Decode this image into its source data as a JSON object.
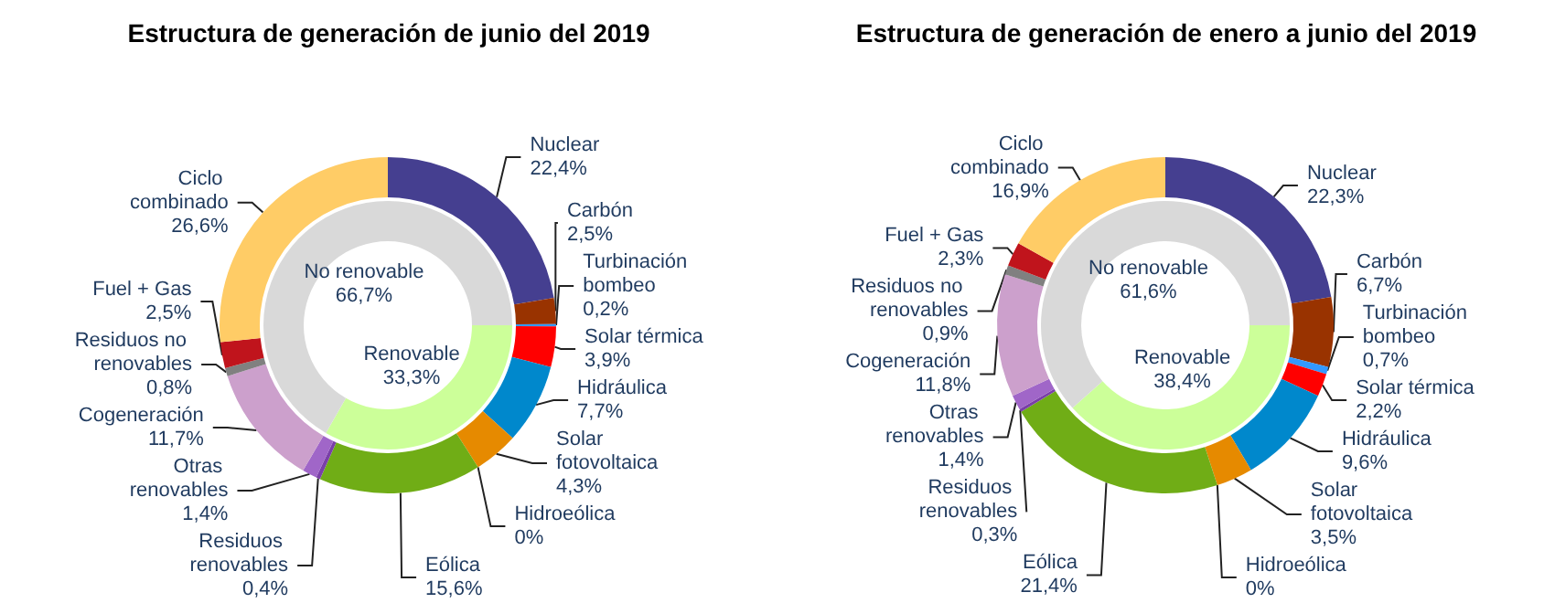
{
  "chart_data": [
    {
      "type": "donut",
      "title": "Estructura de generación de junio del 2019",
      "categories": [
        "Nuclear",
        "Carbón",
        "Turbinación bombeo",
        "Solar térmica",
        "Hidráulica",
        "Solar fotovoltaica",
        "Hidroeólica",
        "Eólica",
        "Residuos renovables",
        "Otras renovables",
        "Cogeneración",
        "Residuos no renovables",
        "Fuel + Gas",
        "Ciclo combinado"
      ],
      "values": [
        22.4,
        2.5,
        0.2,
        3.9,
        7.7,
        4.3,
        0,
        15.6,
        0.4,
        1.4,
        11.7,
        0.8,
        2.5,
        26.6
      ],
      "value_labels": [
        "22,4%",
        "2,5%",
        "0,2%",
        "3,9%",
        "7,7%",
        "4,3%",
        "0%",
        "15,6%",
        "0,4%",
        "1,4%",
        "11,7%",
        "0,8%",
        "2,5%",
        "26,6%"
      ],
      "colors": [
        "#453f90",
        "#993300",
        "#3399ff",
        "#ff0000",
        "#0088cc",
        "#e68a00",
        "#66ccff",
        "#70ad16",
        "#7a3fa8",
        "#a066c8",
        "#cca0cc",
        "#808080",
        "#c0141c",
        "#ffcc66"
      ]
    },
    {
      "type": "donut",
      "categories": [
        "Renovable",
        "No renovable"
      ],
      "values": [
        33.3,
        66.7
      ],
      "value_labels": [
        "33,3%",
        "66,7%"
      ],
      "colors": [
        "#ccff99",
        "#d9d9d9"
      ]
    },
    {
      "type": "donut",
      "title": "Estructura de generación de enero a junio del 2019",
      "categories": [
        "Nuclear",
        "Carbón",
        "Turbinación bombeo",
        "Solar térmica",
        "Hidráulica",
        "Solar fotovoltaica",
        "Hidroeólica",
        "Eólica",
        "Residuos renovables",
        "Otras renovables",
        "Cogeneración",
        "Residuos no renovables",
        "Fuel + Gas",
        "Ciclo combinado"
      ],
      "values": [
        22.3,
        6.7,
        0.7,
        2.2,
        9.6,
        3.5,
        0,
        21.4,
        0.3,
        1.4,
        11.8,
        0.9,
        2.3,
        16.9
      ],
      "value_labels": [
        "22,3%",
        "6,7%",
        "0,7%",
        "2,2%",
        "9,6%",
        "3,5%",
        "0%",
        "21,4%",
        "0,3%",
        "1,4%",
        "11,8%",
        "0,9%",
        "2,3%",
        "16,9%"
      ],
      "colors": [
        "#453f90",
        "#993300",
        "#3399ff",
        "#ff0000",
        "#0088cc",
        "#e68a00",
        "#66ccff",
        "#70ad16",
        "#7a3fa8",
        "#a066c8",
        "#cca0cc",
        "#808080",
        "#c0141c",
        "#ffcc66"
      ]
    },
    {
      "type": "donut",
      "categories": [
        "Renovable",
        "No renovable"
      ],
      "values": [
        38.4,
        61.6
      ],
      "value_labels": [
        "38,4%",
        "61,6%"
      ],
      "colors": [
        "#ccff99",
        "#d9d9d9"
      ]
    }
  ]
}
